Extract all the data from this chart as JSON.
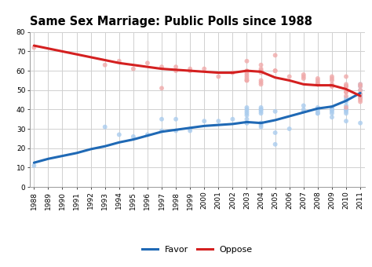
{
  "title": "Same Sex Marriage: Public Polls since 1988",
  "favor_trend_x": [
    1988,
    1989,
    1990,
    1991,
    1992,
    1993,
    1994,
    1995,
    1996,
    1997,
    1998,
    1999,
    2000,
    2001,
    2002,
    2003,
    2004,
    2005,
    2006,
    2007,
    2008,
    2009,
    2010,
    2011
  ],
  "favor_trend_y": [
    12.5,
    14.5,
    16.0,
    17.5,
    19.5,
    21.0,
    23.0,
    24.5,
    26.5,
    28.5,
    29.5,
    30.5,
    31.5,
    32.0,
    32.5,
    33.5,
    33.0,
    34.5,
    36.5,
    38.5,
    40.5,
    41.5,
    44.5,
    48.5
  ],
  "oppose_trend_x": [
    1988,
    1989,
    1990,
    1991,
    1992,
    1993,
    1994,
    1995,
    1996,
    1997,
    1998,
    1999,
    2000,
    2001,
    2002,
    2003,
    2004,
    2005,
    2006,
    2007,
    2008,
    2009,
    2010,
    2011
  ],
  "oppose_trend_y": [
    73.0,
    71.5,
    70.0,
    68.5,
    67.0,
    65.5,
    64.0,
    63.0,
    62.0,
    61.0,
    60.5,
    60.0,
    59.5,
    59.0,
    59.0,
    60.0,
    59.5,
    56.5,
    55.0,
    53.0,
    52.5,
    52.5,
    50.5,
    47.0
  ],
  "favor_scatter_x": [
    1988,
    1993,
    1994,
    1995,
    1996,
    1997,
    1997,
    1998,
    1998,
    1999,
    1999,
    2000,
    2001,
    2002,
    2003,
    2003,
    2003,
    2003,
    2003,
    2003,
    2003,
    2003,
    2004,
    2004,
    2004,
    2004,
    2004,
    2004,
    2004,
    2004,
    2004,
    2005,
    2005,
    2005,
    2006,
    2007,
    2007,
    2007,
    2008,
    2008,
    2008,
    2008,
    2008,
    2009,
    2009,
    2009,
    2009,
    2009,
    2009,
    2010,
    2010,
    2010,
    2010,
    2010,
    2010,
    2010,
    2010,
    2010,
    2011,
    2011,
    2011,
    2011,
    2011,
    2011,
    2011
  ],
  "favor_scatter_y": [
    11,
    31,
    27,
    26,
    27,
    29,
    35,
    29,
    35,
    30,
    29,
    34,
    34,
    35,
    33,
    33,
    35,
    37,
    38,
    39,
    40,
    41,
    33,
    33,
    32,
    31,
    38,
    40,
    41,
    40,
    39,
    22,
    39,
    28,
    30,
    39,
    42,
    40,
    41,
    40,
    39,
    38,
    38,
    40,
    41,
    40,
    39,
    38,
    36,
    40,
    42,
    44,
    45,
    46,
    40,
    39,
    38,
    34,
    46,
    47,
    48,
    50,
    52,
    53,
    33
  ],
  "oppose_scatter_x": [
    1988,
    1993,
    1994,
    1995,
    1996,
    1997,
    1997,
    1998,
    1998,
    1999,
    1999,
    2000,
    2001,
    2002,
    2003,
    2003,
    2003,
    2003,
    2003,
    2003,
    2003,
    2003,
    2004,
    2004,
    2004,
    2004,
    2004,
    2004,
    2004,
    2004,
    2004,
    2005,
    2005,
    2005,
    2006,
    2007,
    2007,
    2007,
    2008,
    2008,
    2008,
    2008,
    2008,
    2009,
    2009,
    2009,
    2009,
    2009,
    2009,
    2010,
    2010,
    2010,
    2010,
    2010,
    2010,
    2010,
    2010,
    2010,
    2011,
    2011,
    2011,
    2011,
    2011,
    2011,
    2011
  ],
  "oppose_scatter_y": [
    72,
    63,
    65,
    61,
    64,
    62,
    51,
    60,
    62,
    61,
    60,
    61,
    57,
    59,
    60,
    59,
    58,
    57,
    56,
    55,
    55,
    65,
    60,
    60,
    61,
    63,
    55,
    54,
    53,
    60,
    59,
    68,
    60,
    60,
    57,
    58,
    57,
    56,
    55,
    54,
    53,
    53,
    56,
    52,
    55,
    53,
    52,
    56,
    57,
    52,
    52,
    53,
    52,
    57,
    47,
    49,
    49,
    41,
    53,
    52,
    50,
    48,
    46,
    45,
    44
  ],
  "favor_color": "#1f69b5",
  "oppose_color": "#d42020",
  "favor_scatter_color": "#aaccee",
  "oppose_scatter_color": "#f0aaaa",
  "background_color": "#ffffff",
  "grid_color": "#d0d0d0",
  "ylim": [
    0,
    80
  ],
  "xlim_min": 1988,
  "xlim_max": 2011,
  "yticks": [
    0,
    10,
    20,
    30,
    40,
    50,
    60,
    70,
    80
  ],
  "xticks": [
    1988,
    1989,
    1990,
    1991,
    1992,
    1993,
    1994,
    1995,
    1996,
    1997,
    1998,
    1999,
    2000,
    2001,
    2002,
    2003,
    2004,
    2005,
    2006,
    2007,
    2008,
    2009,
    2010,
    2011
  ],
  "title_fontsize": 10.5,
  "tick_fontsize": 6.5,
  "legend_fontsize": 8,
  "line_width": 2.2,
  "scatter_size": 18,
  "scatter_alpha": 0.8
}
